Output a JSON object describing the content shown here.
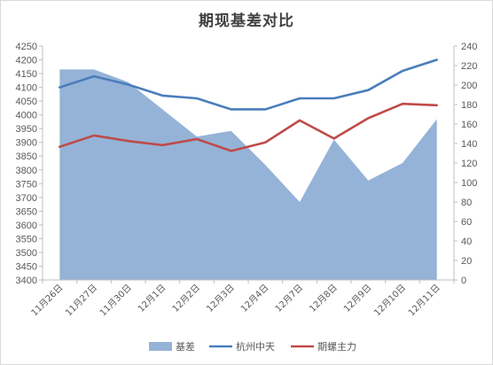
{
  "chart_data": {
    "type": "line",
    "title": "期现基差对比",
    "categories": [
      "11月26日",
      "11月27日",
      "11月30日",
      "12月1日",
      "12月2日",
      "12月3日",
      "12月4日",
      "12月7日",
      "12月8日",
      "12月9日",
      "12月10日",
      "12月11日"
    ],
    "left_axis": {
      "ylim": [
        3400,
        4250
      ],
      "ticks": [
        3400,
        3450,
        3500,
        3550,
        3600,
        3650,
        3700,
        3750,
        3800,
        3850,
        3900,
        3950,
        4000,
        4050,
        4100,
        4150,
        4200,
        4250
      ]
    },
    "right_axis": {
      "ylim": [
        0,
        240
      ],
      "ticks": [
        0,
        20,
        40,
        60,
        80,
        100,
        120,
        140,
        160,
        180,
        200,
        220,
        240
      ]
    },
    "series": [
      {
        "name": "基差",
        "type": "area",
        "axis": "right",
        "color": "#95b3d7",
        "values": [
          216,
          216,
          203,
          175,
          147,
          153,
          118,
          80,
          144,
          102,
          120,
          165
        ]
      },
      {
        "name": "杭州中天",
        "type": "line",
        "axis": "left",
        "color": "#4a7ebb",
        "values": [
          4100,
          4140,
          4110,
          4070,
          4060,
          4020,
          4020,
          4060,
          4060,
          4090,
          4160,
          4200
        ]
      },
      {
        "name": "期螺主力",
        "type": "line",
        "axis": "left",
        "color": "#be4b48",
        "values": [
          3884,
          3925,
          3905,
          3890,
          3912,
          3869,
          3900,
          3980,
          3914,
          3988,
          4040,
          4035
        ]
      }
    ],
    "legend_position": "bottom",
    "grid": false
  }
}
